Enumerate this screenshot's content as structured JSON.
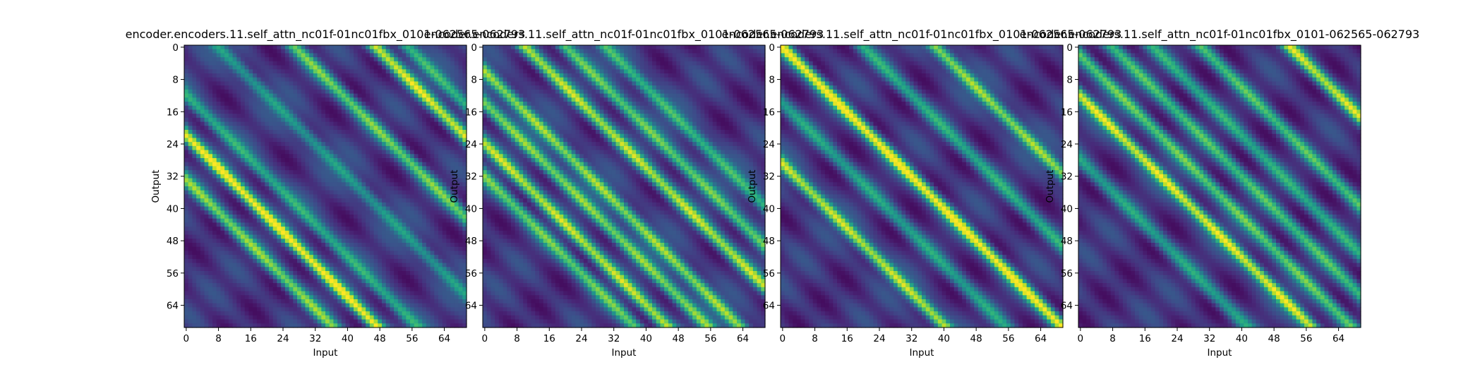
{
  "chart_data": [
    {
      "type": "heatmap",
      "title": "encoder.encoders.11.self_attn_nc01f-01nc01fbx_0101-062565-062793",
      "xlabel": "Input",
      "ylabel": "Output",
      "shape": [
        70,
        70
      ],
      "xticks": [
        0,
        8,
        16,
        24,
        32,
        40,
        48,
        56,
        64
      ],
      "yticks": [
        0,
        8,
        16,
        24,
        32,
        40,
        48,
        56,
        64
      ],
      "colormap": "viridis",
      "diagonal_bands": [
        {
          "offset": -22,
          "strength": 1.0
        },
        {
          "offset": -33,
          "strength": 0.75
        },
        {
          "offset": -12,
          "strength": 0.6
        },
        {
          "offset": 8,
          "strength": 0.55
        },
        {
          "offset": 27,
          "strength": 0.7
        },
        {
          "offset": 47,
          "strength": 0.9
        },
        {
          "offset": 55,
          "strength": 0.7
        }
      ]
    },
    {
      "type": "heatmap",
      "title": "encoder.encoders.11.self_attn_nc01f-01nc01fbx_0101-062565-062793",
      "xlabel": "Input",
      "ylabel": "Output",
      "shape": [
        70,
        70
      ],
      "xticks": [
        0,
        8,
        16,
        24,
        32,
        40,
        48,
        56,
        64
      ],
      "yticks": [
        0,
        8,
        16,
        24,
        32,
        40,
        48,
        56,
        64
      ],
      "colormap": "viridis",
      "diagonal_bands": [
        {
          "offset": -6,
          "strength": 0.9
        },
        {
          "offset": -14,
          "strength": 0.8
        },
        {
          "offset": -24,
          "strength": 0.85
        },
        {
          "offset": -32,
          "strength": 0.7
        },
        {
          "offset": 10,
          "strength": 0.85
        },
        {
          "offset": 20,
          "strength": 0.75
        },
        {
          "offset": 30,
          "strength": 0.7
        }
      ]
    },
    {
      "type": "heatmap",
      "title": "encoder.encoders.11.self_attn_nc01f-01nc01fbx_0101-062565-062793",
      "xlabel": "Input",
      "ylabel": "Output",
      "shape": [
        70,
        70
      ],
      "xticks": [
        0,
        8,
        16,
        24,
        32,
        40,
        48,
        56,
        64
      ],
      "yticks": [
        0,
        8,
        16,
        24,
        32,
        40,
        48,
        56,
        64
      ],
      "colormap": "viridis",
      "diagonal_bands": [
        {
          "offset": 0,
          "strength": 1.0
        },
        {
          "offset": -29,
          "strength": 0.95
        },
        {
          "offset": 38,
          "strength": 0.9
        },
        {
          "offset": 20,
          "strength": 0.5
        },
        {
          "offset": -14,
          "strength": 0.45
        }
      ]
    },
    {
      "type": "heatmap",
      "title": "encoder.encoders.11.self_attn_nc01f-01nc01fbx_0101-062565-062793",
      "xlabel": "Input",
      "ylabel": "Output",
      "shape": [
        70,
        70
      ],
      "xticks": [
        0,
        8,
        16,
        24,
        32,
        40,
        48,
        56,
        64
      ],
      "yticks": [
        0,
        8,
        16,
        24,
        32,
        40,
        48,
        56,
        64
      ],
      "colormap": "viridis",
      "diagonal_bands": [
        {
          "offset": -12,
          "strength": 1.0
        },
        {
          "offset": -2,
          "strength": 0.7
        },
        {
          "offset": 8,
          "strength": 0.6
        },
        {
          "offset": 18,
          "strength": 0.5
        },
        {
          "offset": 30,
          "strength": 0.6
        },
        {
          "offset": 52,
          "strength": 0.85
        },
        {
          "offset": -28,
          "strength": 0.45
        }
      ]
    }
  ]
}
